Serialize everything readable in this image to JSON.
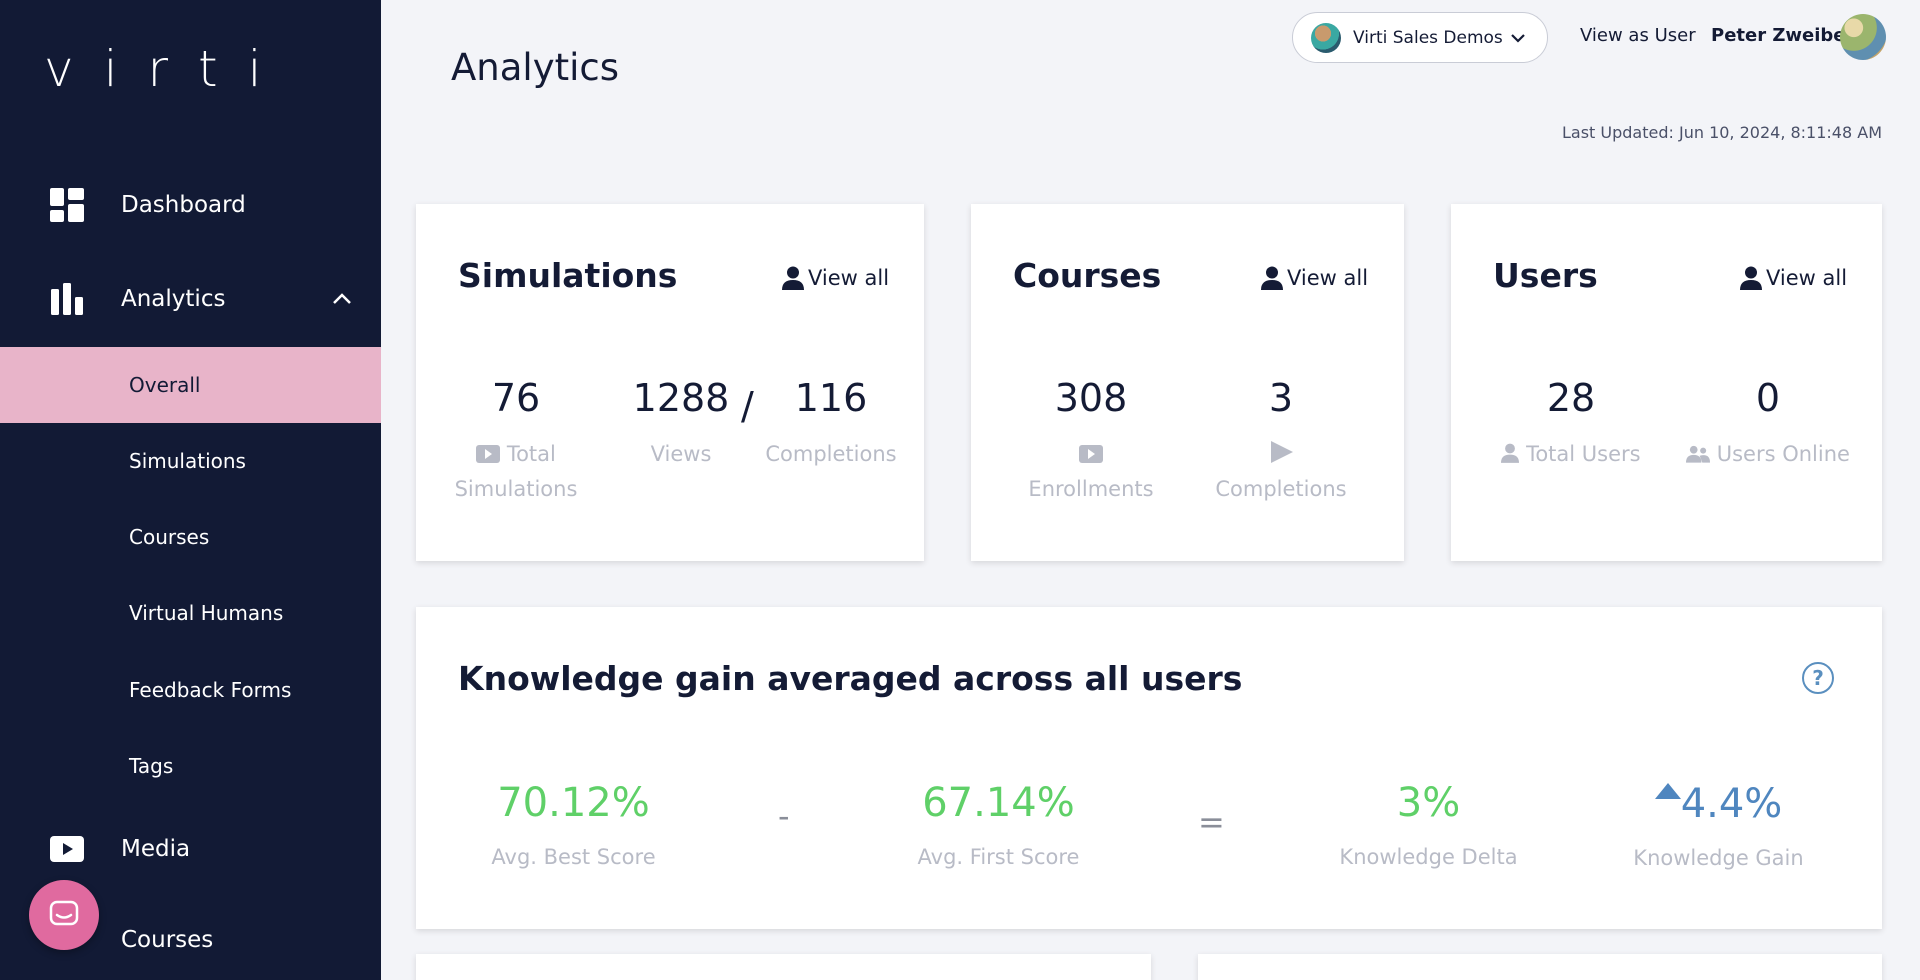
{
  "sidebar": {
    "logo": "virti",
    "items": [
      {
        "label": "Dashboard",
        "icon": "dashboard-icon"
      },
      {
        "label": "Analytics",
        "icon": "bar-chart-icon"
      },
      {
        "label": "Media",
        "icon": "play-icon"
      },
      {
        "label": "Courses",
        "icon": "course-icon"
      }
    ],
    "analytics_sub": [
      {
        "label": "Overall",
        "active": true
      },
      {
        "label": "Simulations"
      },
      {
        "label": "Courses"
      },
      {
        "label": "Virtual Humans"
      },
      {
        "label": "Feedback Forms"
      },
      {
        "label": "Tags"
      }
    ],
    "active_color": "#e8b4c9",
    "bg_color": "#121a35"
  },
  "header": {
    "title": "Analytics",
    "org_select": "Virti Sales Demos",
    "view_as": "View as User",
    "user_name": "Peter Zweibel",
    "last_updated": "Last Updated: Jun 10, 2024, 8:11:48 AM"
  },
  "cards": {
    "simulations": {
      "title": "Simulations",
      "view_all": "View all",
      "total": "76",
      "total_label_1": "Total",
      "total_label_2": "Simulations",
      "views": "1288",
      "views_label": "Views",
      "slash": "/",
      "completions": "116",
      "completions_label": "Completions"
    },
    "courses": {
      "title": "Courses",
      "view_all": "View all",
      "enrollments": "308",
      "enrollments_label": "Enrollments",
      "completions": "3",
      "completions_label": "Completions"
    },
    "users": {
      "title": "Users",
      "view_all": "View all",
      "total": "28",
      "total_label": "Total Users",
      "online": "0",
      "online_label": "Users Online"
    }
  },
  "knowledge": {
    "title": "Knowledge gain averaged across all users",
    "help": "?",
    "best": "70.12%",
    "best_label": "Avg. Best Score",
    "minus": "-",
    "first": "67.14%",
    "first_label": "Avg. First Score",
    "equals": "=",
    "delta": "3%",
    "delta_label": "Knowledge Delta",
    "gain": "4.4%",
    "gain_label": "Knowledge Gain",
    "green": "#5fd068",
    "blue": "#4f86bf"
  }
}
